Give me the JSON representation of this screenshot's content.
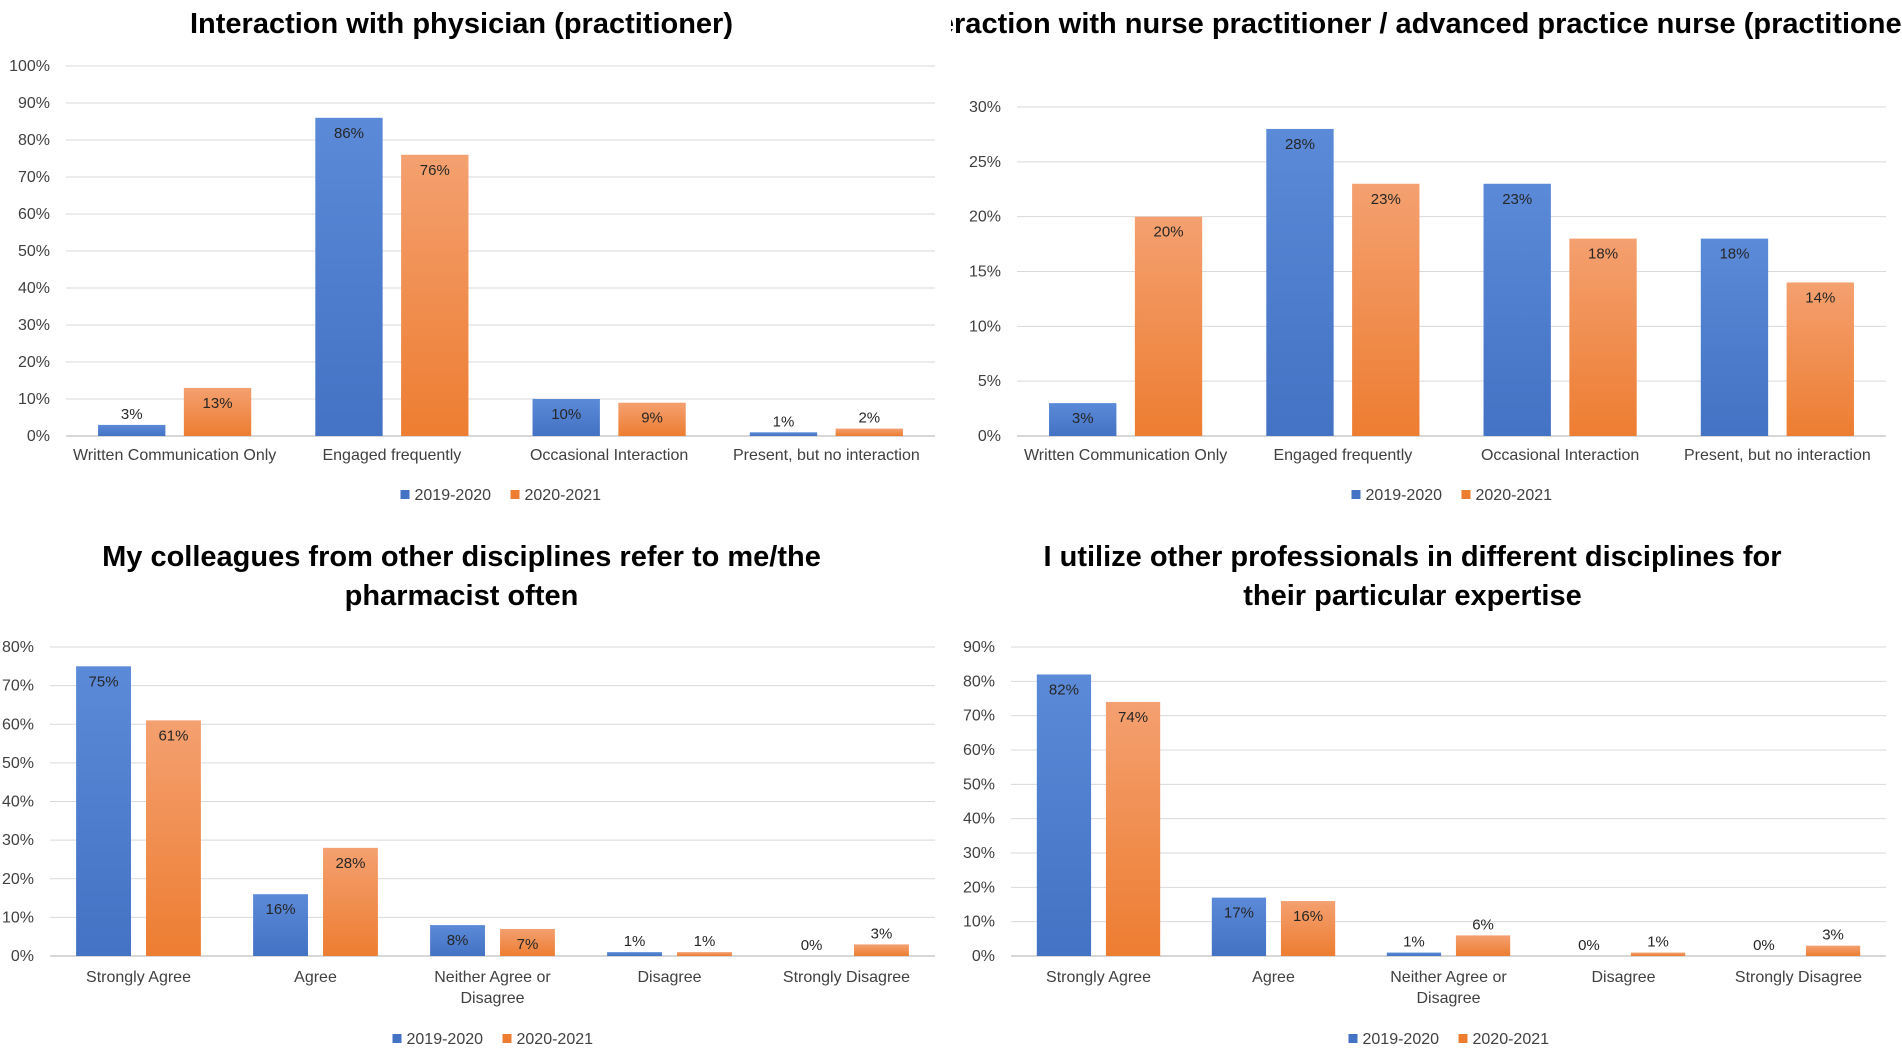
{
  "colors": {
    "series1": "#4472C4",
    "series1_light": "#5B8AD8",
    "series2": "#ED7D31",
    "series2_light": "#F4A070"
  },
  "chart_data": [
    {
      "type": "bar",
      "title": "Interaction with physician (practitioner)",
      "categories": [
        "Written Communication Only",
        "Engaged frequently",
        "Occasional Interaction",
        "Present, but no interaction"
      ],
      "series": [
        {
          "name": "2019-2020",
          "values": [
            3,
            86,
            10,
            1
          ],
          "labels": [
            "3%",
            "86%",
            "10%",
            "1%"
          ]
        },
        {
          "name": "2020-2021",
          "values": [
            13,
            76,
            9,
            2
          ],
          "labels": [
            "13%",
            "76%",
            "9%",
            "2%"
          ]
        }
      ],
      "ylim": [
        0,
        100
      ],
      "yticks": [
        "0%",
        "10%",
        "20%",
        "30%",
        "40%",
        "50%",
        "60%",
        "70%",
        "80%",
        "90%",
        "100%"
      ],
      "legend": "bottom"
    },
    {
      "type": "bar",
      "title": "Interaction with nurse practitioner / advanced practice nurse (practitioner)",
      "categories": [
        "Written Communication Only",
        "Engaged frequently",
        "Occasional Interaction",
        "Present, but no interaction"
      ],
      "series": [
        {
          "name": "2019-2020",
          "values": [
            3,
            28,
            23,
            18
          ],
          "labels": [
            "3%",
            "28%",
            "23%",
            "18%"
          ]
        },
        {
          "name": "2020-2021",
          "values": [
            20,
            23,
            18,
            14
          ],
          "labels": [
            "20%",
            "23%",
            "18%",
            "14%"
          ]
        }
      ],
      "ylim": [
        0,
        30
      ],
      "yticks": [
        "0%",
        "5%",
        "10%",
        "15%",
        "20%",
        "25%",
        "30%"
      ],
      "legend": "bottom"
    },
    {
      "type": "bar",
      "title": "My colleagues from other disciplines refer to me/the pharmacist often",
      "categories": [
        "Strongly Agree",
        "Agree",
        "Neither Agree or Disagree",
        "Disagree",
        "Strongly Disagree"
      ],
      "series": [
        {
          "name": "2019-2020",
          "values": [
            75,
            16,
            8,
            1,
            0
          ],
          "labels": [
            "75%",
            "16%",
            "8%",
            "1%",
            "0%"
          ]
        },
        {
          "name": "2020-2021",
          "values": [
            61,
            28,
            7,
            1,
            3
          ],
          "labels": [
            "61%",
            "28%",
            "7%",
            "1%",
            "3%"
          ]
        }
      ],
      "ylim": [
        0,
        80
      ],
      "yticks": [
        "0%",
        "10%",
        "20%",
        "30%",
        "40%",
        "50%",
        "60%",
        "70%",
        "80%"
      ],
      "legend": "bottom"
    },
    {
      "type": "bar",
      "title": "I utilize other professionals in different disciplines for their particular expertise",
      "categories": [
        "Strongly Agree",
        "Agree",
        "Neither Agree or Disagree",
        "Disagree",
        "Strongly Disagree"
      ],
      "series": [
        {
          "name": "2019-2020",
          "values": [
            82,
            17,
            1,
            0,
            0
          ],
          "labels": [
            "82%",
            "17%",
            "1%",
            "0%",
            "0%"
          ]
        },
        {
          "name": "2020-2021",
          "values": [
            74,
            16,
            6,
            1,
            3
          ],
          "labels": [
            "74%",
            "16%",
            "6%",
            "1%",
            "3%"
          ]
        }
      ],
      "ylim": [
        0,
        90
      ],
      "yticks": [
        "0%",
        "10%",
        "20%",
        "30%",
        "40%",
        "50%",
        "60%",
        "70%",
        "80%",
        "90%"
      ],
      "legend": "bottom"
    }
  ]
}
